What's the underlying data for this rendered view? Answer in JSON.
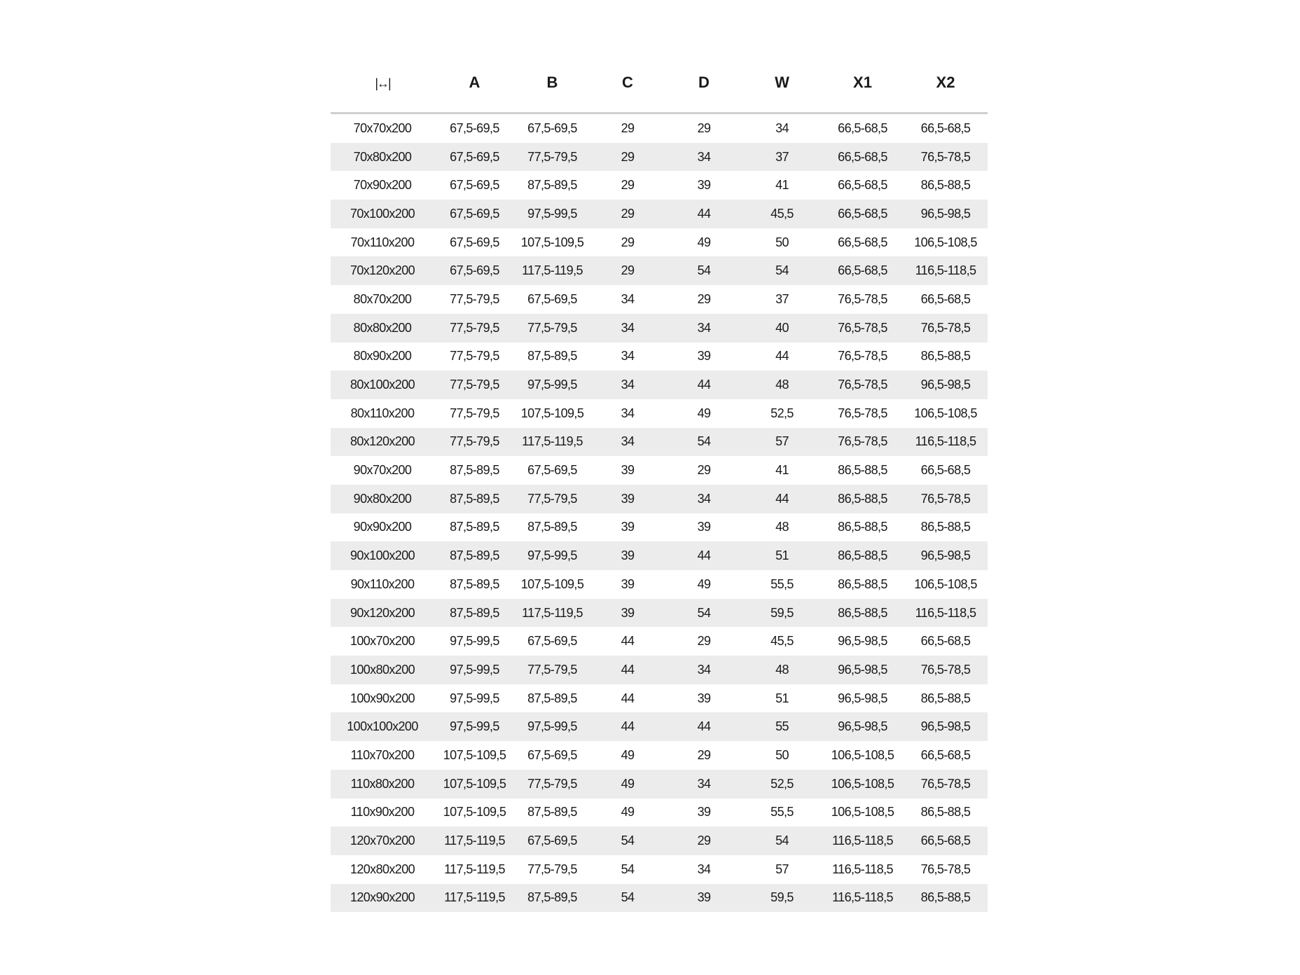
{
  "table": {
    "header_icon": "horizontal-dimension-icon",
    "columns": [
      "A",
      "B",
      "C",
      "D",
      "W",
      "X1",
      "X2"
    ],
    "rows": [
      [
        "70x70x200",
        "67,5-69,5",
        "67,5-69,5",
        "29",
        "29",
        "34",
        "66,5-68,5",
        "66,5-68,5"
      ],
      [
        "70x80x200",
        "67,5-69,5",
        "77,5-79,5",
        "29",
        "34",
        "37",
        "66,5-68,5",
        "76,5-78,5"
      ],
      [
        "70x90x200",
        "67,5-69,5",
        "87,5-89,5",
        "29",
        "39",
        "41",
        "66,5-68,5",
        "86,5-88,5"
      ],
      [
        "70x100x200",
        "67,5-69,5",
        "97,5-99,5",
        "29",
        "44",
        "45,5",
        "66,5-68,5",
        "96,5-98,5"
      ],
      [
        "70x110x200",
        "67,5-69,5",
        "107,5-109,5",
        "29",
        "49",
        "50",
        "66,5-68,5",
        "106,5-108,5"
      ],
      [
        "70x120x200",
        "67,5-69,5",
        "117,5-119,5",
        "29",
        "54",
        "54",
        "66,5-68,5",
        "116,5-118,5"
      ],
      [
        "80x70x200",
        "77,5-79,5",
        "67,5-69,5",
        "34",
        "29",
        "37",
        "76,5-78,5",
        "66,5-68,5"
      ],
      [
        "80x80x200",
        "77,5-79,5",
        "77,5-79,5",
        "34",
        "34",
        "40",
        "76,5-78,5",
        "76,5-78,5"
      ],
      [
        "80x90x200",
        "77,5-79,5",
        "87,5-89,5",
        "34",
        "39",
        "44",
        "76,5-78,5",
        "86,5-88,5"
      ],
      [
        "80x100x200",
        "77,5-79,5",
        "97,5-99,5",
        "34",
        "44",
        "48",
        "76,5-78,5",
        "96,5-98,5"
      ],
      [
        "80x110x200",
        "77,5-79,5",
        "107,5-109,5",
        "34",
        "49",
        "52,5",
        "76,5-78,5",
        "106,5-108,5"
      ],
      [
        "80x120x200",
        "77,5-79,5",
        "117,5-119,5",
        "34",
        "54",
        "57",
        "76,5-78,5",
        "116,5-118,5"
      ],
      [
        "90x70x200",
        "87,5-89,5",
        "67,5-69,5",
        "39",
        "29",
        "41",
        "86,5-88,5",
        "66,5-68,5"
      ],
      [
        "90x80x200",
        "87,5-89,5",
        "77,5-79,5",
        "39",
        "34",
        "44",
        "86,5-88,5",
        "76,5-78,5"
      ],
      [
        "90x90x200",
        "87,5-89,5",
        "87,5-89,5",
        "39",
        "39",
        "48",
        "86,5-88,5",
        "86,5-88,5"
      ],
      [
        "90x100x200",
        "87,5-89,5",
        "97,5-99,5",
        "39",
        "44",
        "51",
        "86,5-88,5",
        "96,5-98,5"
      ],
      [
        "90x110x200",
        "87,5-89,5",
        "107,5-109,5",
        "39",
        "49",
        "55,5",
        "86,5-88,5",
        "106,5-108,5"
      ],
      [
        "90x120x200",
        "87,5-89,5",
        "117,5-119,5",
        "39",
        "54",
        "59,5",
        "86,5-88,5",
        "116,5-118,5"
      ],
      [
        "100x70x200",
        "97,5-99,5",
        "67,5-69,5",
        "44",
        "29",
        "45,5",
        "96,5-98,5",
        "66,5-68,5"
      ],
      [
        "100x80x200",
        "97,5-99,5",
        "77,5-79,5",
        "44",
        "34",
        "48",
        "96,5-98,5",
        "76,5-78,5"
      ],
      [
        "100x90x200",
        "97,5-99,5",
        "87,5-89,5",
        "44",
        "39",
        "51",
        "96,5-98,5",
        "86,5-88,5"
      ],
      [
        "100x100x200",
        "97,5-99,5",
        "97,5-99,5",
        "44",
        "44",
        "55",
        "96,5-98,5",
        "96,5-98,5"
      ],
      [
        "110x70x200",
        "107,5-109,5",
        "67,5-69,5",
        "49",
        "29",
        "50",
        "106,5-108,5",
        "66,5-68,5"
      ],
      [
        "110x80x200",
        "107,5-109,5",
        "77,5-79,5",
        "49",
        "34",
        "52,5",
        "106,5-108,5",
        "76,5-78,5"
      ],
      [
        "110x90x200",
        "107,5-109,5",
        "87,5-89,5",
        "49",
        "39",
        "55,5",
        "106,5-108,5",
        "86,5-88,5"
      ],
      [
        "120x70x200",
        "117,5-119,5",
        "67,5-69,5",
        "54",
        "29",
        "54",
        "116,5-118,5",
        "66,5-68,5"
      ],
      [
        "120x80x200",
        "117,5-119,5",
        "77,5-79,5",
        "54",
        "34",
        "57",
        "116,5-118,5",
        "76,5-78,5"
      ],
      [
        "120x90x200",
        "117,5-119,5",
        "87,5-89,5",
        "54",
        "39",
        "59,5",
        "116,5-118,5",
        "86,5-88,5"
      ]
    ]
  }
}
